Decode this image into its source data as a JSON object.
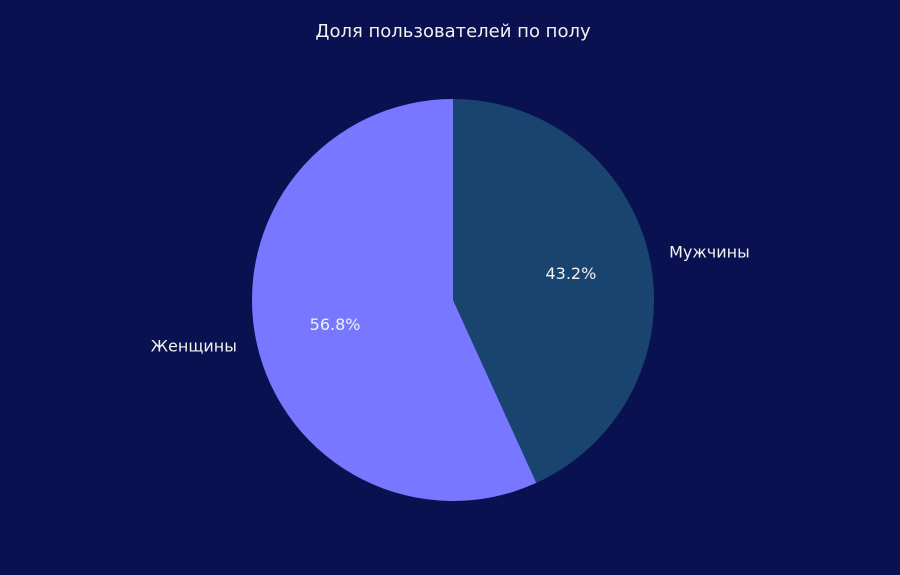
{
  "chart_data": {
    "type": "pie",
    "title": "Доля пользователей по полу",
    "slices": [
      {
        "label": "Мужчины",
        "value": 43.2,
        "pct_label": "43.2%",
        "color": "#1a4470"
      },
      {
        "label": "Женщины",
        "value": 56.8,
        "pct_label": "56.8%",
        "color": "#7777ff"
      }
    ],
    "start_angle_deg": 90,
    "direction": "clockwise",
    "legend": "none"
  },
  "colors": {
    "background": "#0a1150",
    "text": "#f2f2f2"
  }
}
